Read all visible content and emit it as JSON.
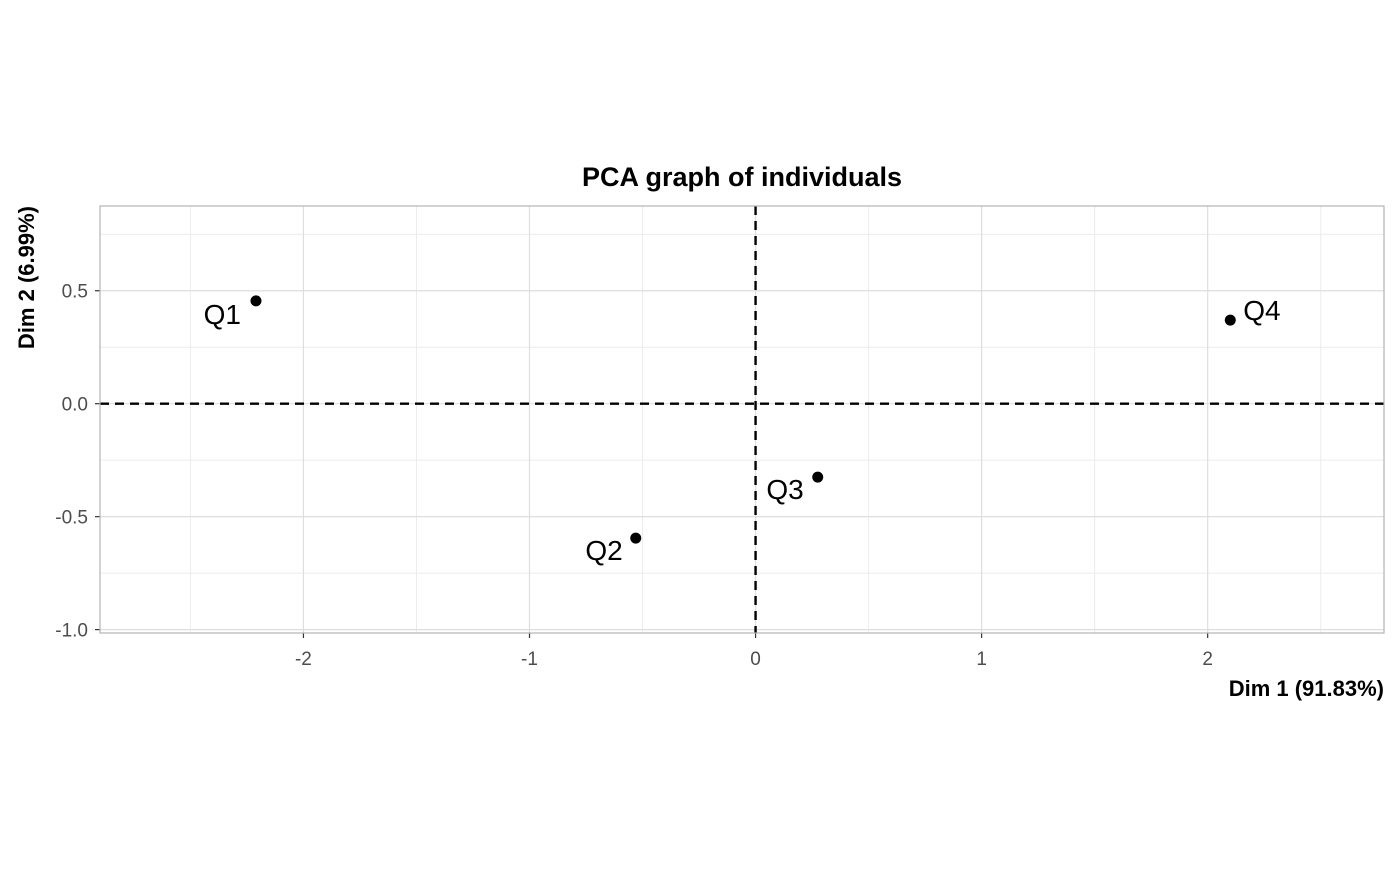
{
  "chart_data": {
    "type": "scatter",
    "title": "PCA graph of individuals",
    "xlabel": "Dim 1 (91.83%)",
    "ylabel": "Dim 2 (6.99%)",
    "xlim": [
      -2.9,
      2.78
    ],
    "ylim": [
      -1.015,
      0.875
    ],
    "x_ticks": [
      {
        "value": -2,
        "label": "-2"
      },
      {
        "value": -1,
        "label": "-1"
      },
      {
        "value": 0,
        "label": "0"
      },
      {
        "value": 1,
        "label": "1"
      },
      {
        "value": 2,
        "label": "2"
      }
    ],
    "y_ticks": [
      {
        "value": 0.5,
        "label": "0.5"
      },
      {
        "value": 0.0,
        "label": "0.0"
      },
      {
        "value": -0.5,
        "label": "-0.5"
      },
      {
        "value": -1.0,
        "label": "-1.0"
      }
    ],
    "grid": true,
    "reference_lines": {
      "x": 0,
      "y": 0,
      "style": "dashed"
    },
    "points": [
      {
        "label": "Q1",
        "x": -2.21,
        "y": 0.455
      },
      {
        "label": "Q2",
        "x": -0.53,
        "y": -0.595
      },
      {
        "label": "Q3",
        "x": 0.275,
        "y": -0.325
      },
      {
        "label": "Q4",
        "x": 2.1,
        "y": 0.37
      }
    ],
    "colors": {
      "points": "#000000",
      "grid_major": "#dedede",
      "grid_minor": "#ececec",
      "panel_border": "#b3b3b3"
    }
  }
}
